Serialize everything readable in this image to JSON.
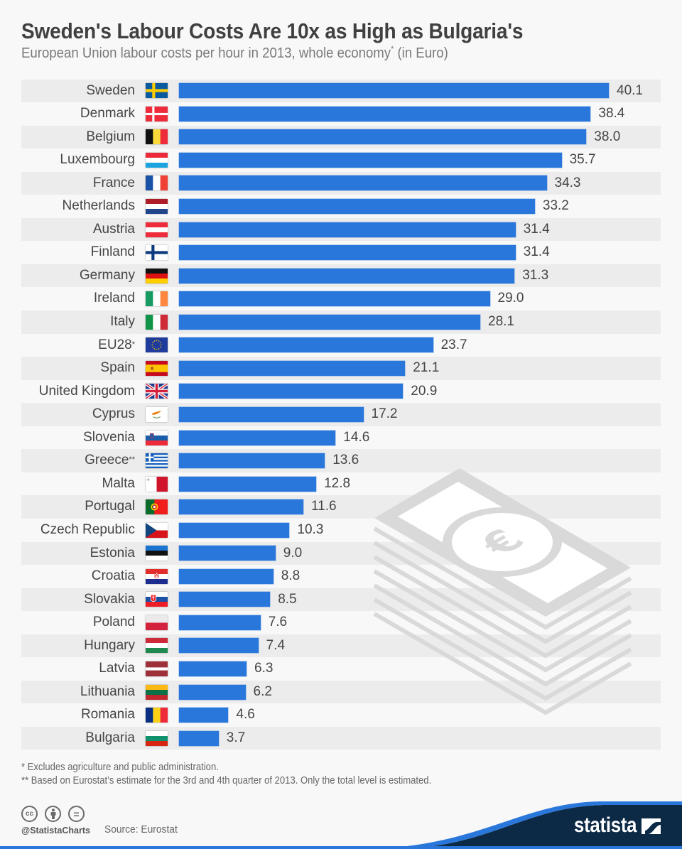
{
  "header": {
    "title": "Sweden's Labour Costs Are 10x as High as Bulgaria's",
    "subtitle": "European Union labour costs per hour in 2013, whole economy",
    "subtitle_note_mark": "*",
    "subtitle_suffix": " (in Euro)"
  },
  "chart_data": {
    "type": "bar",
    "orientation": "horizontal",
    "title": "Sweden's Labour Costs Are 10x as High as Bulgaria's",
    "subtitle": "European Union labour costs per hour in 2013, whole economy* (in Euro)",
    "xlabel": "",
    "ylabel": "",
    "unit": "Euro per hour",
    "xlim": [
      0,
      40.1
    ],
    "grid": false,
    "legend": "none",
    "categories": [
      "Sweden",
      "Denmark",
      "Belgium",
      "Luxembourg",
      "France",
      "Netherlands",
      "Austria",
      "Finland",
      "Germany",
      "Ireland",
      "Italy",
      "EU28",
      "Spain",
      "United Kingdom",
      "Cyprus",
      "Slovenia",
      "Greece",
      "Malta",
      "Portugal",
      "Czech Republic",
      "Estonia",
      "Croatia",
      "Slovakia",
      "Poland",
      "Hungary",
      "Latvia",
      "Lithuania",
      "Romania",
      "Bulgaria"
    ],
    "category_notes": {
      "EU28": "*",
      "Greece": "**"
    },
    "values": [
      40.1,
      38.4,
      38.0,
      35.7,
      34.3,
      33.2,
      31.4,
      31.4,
      31.3,
      29.0,
      28.1,
      23.7,
      21.1,
      20.9,
      17.2,
      14.6,
      13.6,
      12.8,
      11.6,
      10.3,
      9.0,
      8.8,
      8.5,
      7.6,
      7.4,
      6.3,
      6.2,
      4.6,
      3.7
    ],
    "data_labels": [
      "40.1",
      "38.4",
      "38.0",
      "35.7",
      "34.3",
      "33.2",
      "31.4",
      "31.4",
      "31.3",
      "29.0",
      "28.1",
      "23.7",
      "21.1",
      "20.9",
      "17.2",
      "14.6",
      "13.6",
      "12.8",
      "11.6",
      "10.3",
      "9.0",
      "8.8",
      "8.5",
      "7.6",
      "7.4",
      "6.3",
      "6.2",
      "4.6",
      "3.7"
    ],
    "flag_icons": [
      "sweden-flag-icon",
      "denmark-flag-icon",
      "belgium-flag-icon",
      "luxembourg-flag-icon",
      "france-flag-icon",
      "netherlands-flag-icon",
      "austria-flag-icon",
      "finland-flag-icon",
      "germany-flag-icon",
      "ireland-flag-icon",
      "italy-flag-icon",
      "eu-flag-icon",
      "spain-flag-icon",
      "united-kingdom-flag-icon",
      "cyprus-flag-icon",
      "slovenia-flag-icon",
      "greece-flag-icon",
      "malta-flag-icon",
      "portugal-flag-icon",
      "czech-republic-flag-icon",
      "estonia-flag-icon",
      "croatia-flag-icon",
      "slovakia-flag-icon",
      "poland-flag-icon",
      "hungary-flag-icon",
      "latvia-flag-icon",
      "lithuania-flag-icon",
      "romania-flag-icon",
      "bulgaria-flag-icon"
    ],
    "bar_color": "#2a77db"
  },
  "illustration": {
    "icon": "euro-banknote-stack-icon"
  },
  "footnotes": [
    "* Excludes agriculture and public administration.",
    "** Based on Eurostat’s estimate for the 3rd and 4th quarter of 2013. Only the total level is estimated."
  ],
  "footer": {
    "license_icons": [
      "cc-icon",
      "attribution-icon",
      "no-derivatives-icon"
    ],
    "license_glyphs": [
      "cc",
      "",
      "="
    ],
    "handle": "@StatistaCharts",
    "source": "Source: Eurostat",
    "brand": "statista"
  },
  "colors": {
    "bar": "#2a77db",
    "background": "#f8f8f8",
    "row_alt": "#ececec",
    "brand_navy": "#0c2a46",
    "brand_blue": "#2a77db",
    "text": "#444444"
  }
}
